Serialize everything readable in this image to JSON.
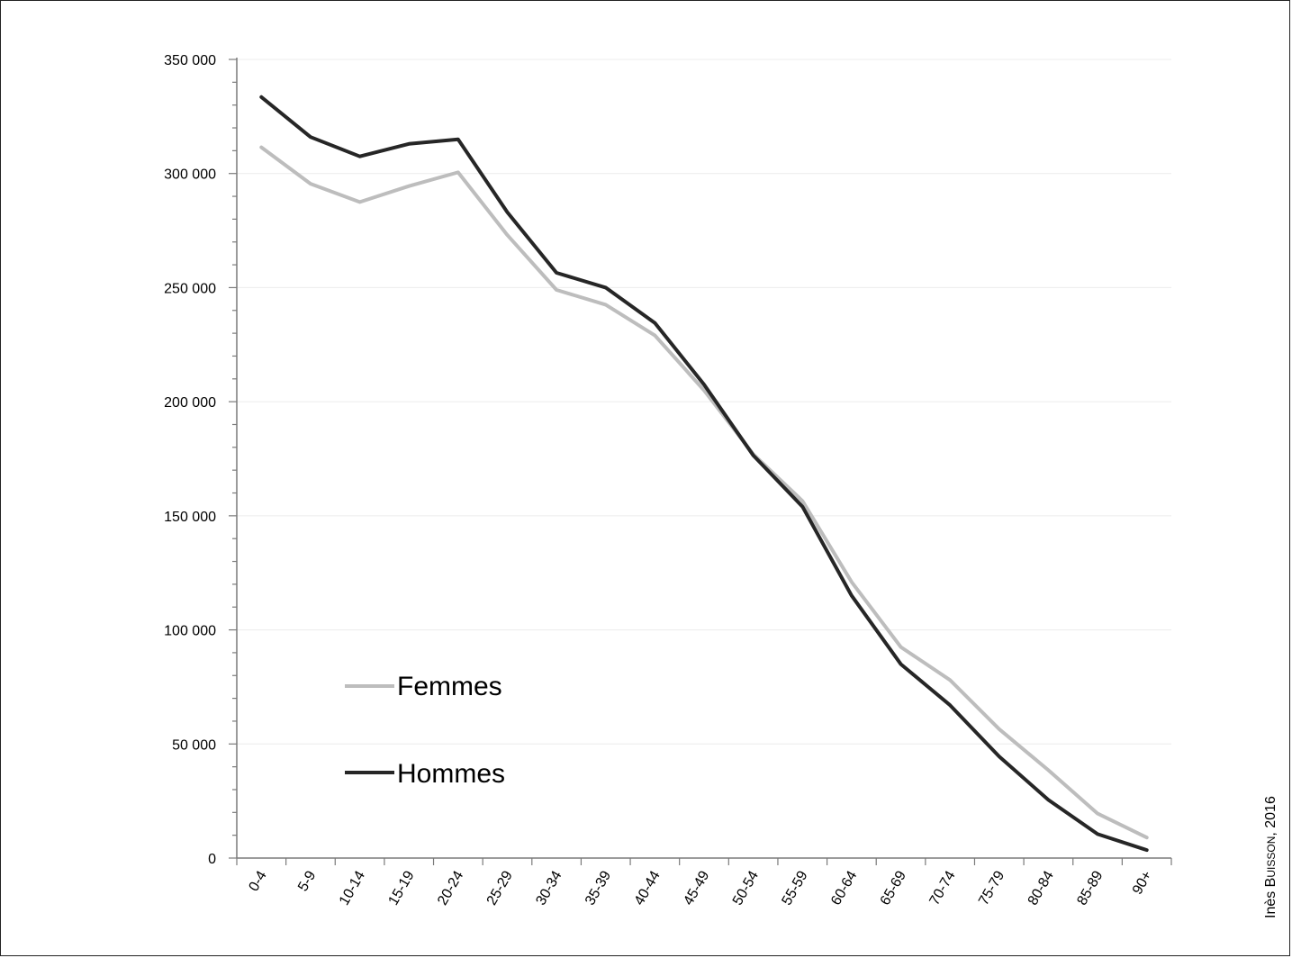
{
  "chart_data": {
    "type": "line",
    "categories": [
      "0-4",
      "5-9",
      "10-14",
      "15-19",
      "20-24",
      "25-29",
      "30-34",
      "35-39",
      "40-44",
      "45-49",
      "50-54",
      "55-59",
      "60-64",
      "65-69",
      "70-74",
      "75-79",
      "80-84",
      "85-89",
      "90+"
    ],
    "series": [
      {
        "name": "Femmes",
        "color": "#bdbdbd",
        "values": [
          311500,
          295500,
          287500,
          294500,
          300500,
          273000,
          249000,
          242500,
          229000,
          205000,
          177000,
          156500,
          121000,
          92500,
          78000,
          56500,
          38500,
          19500,
          9000
        ]
      },
      {
        "name": "Hommes",
        "color": "#262626",
        "values": [
          333500,
          316000,
          307500,
          313000,
          315000,
          283000,
          256500,
          250000,
          234500,
          207500,
          176500,
          154000,
          115000,
          85000,
          67000,
          44500,
          25500,
          10500,
          3500
        ]
      }
    ],
    "ylim": [
      0,
      350000
    ],
    "yticks": [
      0,
      50000,
      100000,
      150000,
      200000,
      250000,
      300000,
      350000
    ],
    "ytick_labels": [
      "0",
      "50 000",
      "100 000",
      "150 000",
      "200 000",
      "250 000",
      "300 000",
      "350 000"
    ],
    "grid": true,
    "legend_position": "bottom-left"
  },
  "credit": {
    "first": "Inès ",
    "surname_initial": "B",
    "surname_rest": "UISSON",
    "tail": ", 2016"
  }
}
